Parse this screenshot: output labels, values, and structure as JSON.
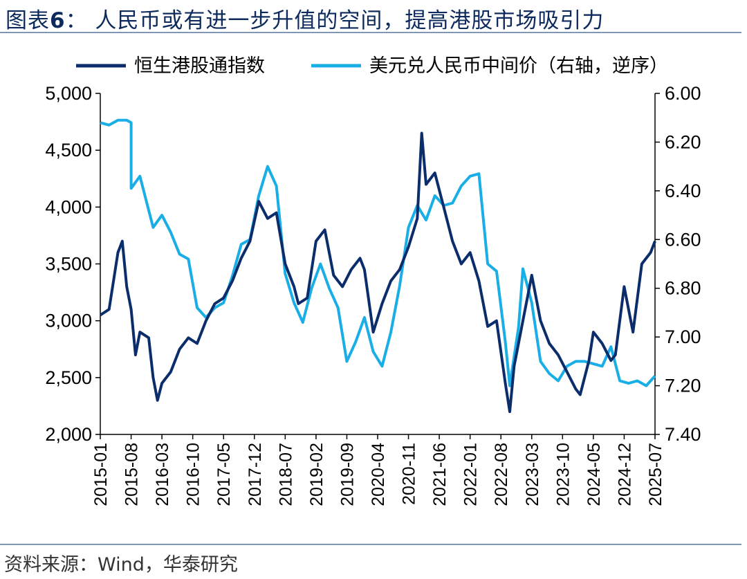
{
  "header": {
    "title_prefix": "图表",
    "title_number": "6",
    "title_text": "：  人民币或有进一步升值的空间，提高港股市场吸引力"
  },
  "footer": {
    "source": "资料来源：Wind，华泰研究"
  },
  "chart_data": {
    "type": "line",
    "x_ticks": [
      "2015-01",
      "2015-08",
      "2016-03",
      "2016-10",
      "2017-05",
      "2017-12",
      "2018-07",
      "2019-02",
      "2019-09",
      "2020-04",
      "2020-11",
      "2021-06",
      "2022-01",
      "2022-08",
      "2023-03",
      "2023-10",
      "2024-05",
      "2024-12",
      "2025-07"
    ],
    "y_left": {
      "ticks": [
        "5,000",
        "4,500",
        "4,000",
        "3,500",
        "3,000",
        "2,500",
        "2,000"
      ],
      "range": [
        2000,
        5000
      ]
    },
    "y_right": {
      "ticks": [
        "6.00",
        "6.20",
        "6.40",
        "6.60",
        "6.80",
        "7.00",
        "7.20",
        "7.40"
      ],
      "range": [
        6.0,
        7.4
      ],
      "reversed": true
    },
    "series": [
      {
        "name": "恒生港股通指数",
        "color": "#0b2d6b",
        "axis": "left",
        "x": [
          "2015-01",
          "2015-03",
          "2015-05",
          "2015-06",
          "2015-07",
          "2015-08",
          "2015-09",
          "2015-10",
          "2015-12",
          "2016-01",
          "2016-02",
          "2016-03",
          "2016-05",
          "2016-07",
          "2016-09",
          "2016-11",
          "2017-01",
          "2017-03",
          "2017-05",
          "2017-07",
          "2017-09",
          "2017-11",
          "2018-01",
          "2018-03",
          "2018-05",
          "2018-07",
          "2018-09",
          "2018-10",
          "2018-12",
          "2019-02",
          "2019-04",
          "2019-06",
          "2019-08",
          "2019-10",
          "2019-12",
          "2020-01",
          "2020-03",
          "2020-05",
          "2020-07",
          "2020-09",
          "2020-11",
          "2021-01",
          "2021-02",
          "2021-03",
          "2021-05",
          "2021-07",
          "2021-09",
          "2021-11",
          "2022-01",
          "2022-03",
          "2022-05",
          "2022-07",
          "2022-09",
          "2022-10",
          "2022-11",
          "2023-01",
          "2023-03",
          "2023-05",
          "2023-07",
          "2023-09",
          "2023-11",
          "2024-01",
          "2024-02",
          "2024-04",
          "2024-05",
          "2024-07",
          "2024-09",
          "2024-10",
          "2024-12",
          "2025-02",
          "2025-04",
          "2025-06",
          "2025-07"
        ],
        "values": [
          3050,
          3100,
          3600,
          3700,
          3300,
          3100,
          2700,
          2900,
          2850,
          2500,
          2300,
          2450,
          2550,
          2750,
          2850,
          2800,
          3000,
          3150,
          3200,
          3350,
          3550,
          3700,
          4050,
          3900,
          3950,
          3500,
          3300,
          3150,
          3200,
          3700,
          3800,
          3400,
          3300,
          3450,
          3550,
          3450,
          2900,
          3150,
          3350,
          3450,
          3650,
          3900,
          4650,
          4200,
          4300,
          4000,
          3700,
          3500,
          3600,
          3350,
          2950,
          3000,
          2450,
          2200,
          2600,
          3000,
          3400,
          3000,
          2800,
          2700,
          2550,
          2400,
          2350,
          2650,
          2900,
          2800,
          2650,
          2700,
          3300,
          2900,
          3500,
          3600,
          3700
        ]
      },
      {
        "name": "美元兑人民币中间价（右轴，逆序）",
        "color": "#1aaee6",
        "axis": "right",
        "x": [
          "2015-01",
          "2015-03",
          "2015-05",
          "2015-07",
          "2015-08",
          "2015-08",
          "2015-10",
          "2015-12",
          "2016-01",
          "2016-03",
          "2016-05",
          "2016-07",
          "2016-09",
          "2016-11",
          "2017-01",
          "2017-03",
          "2017-05",
          "2017-07",
          "2017-09",
          "2017-11",
          "2018-01",
          "2018-03",
          "2018-05",
          "2018-07",
          "2018-09",
          "2018-11",
          "2019-01",
          "2019-03",
          "2019-05",
          "2019-07",
          "2019-09",
          "2019-11",
          "2020-01",
          "2020-03",
          "2020-05",
          "2020-07",
          "2020-09",
          "2020-11",
          "2021-01",
          "2021-03",
          "2021-05",
          "2021-07",
          "2021-09",
          "2021-11",
          "2022-01",
          "2022-03",
          "2022-05",
          "2022-07",
          "2022-09",
          "2022-10",
          "2022-12",
          "2023-01",
          "2023-03",
          "2023-05",
          "2023-07",
          "2023-09",
          "2023-11",
          "2024-01",
          "2024-03",
          "2024-05",
          "2024-07",
          "2024-09",
          "2024-11",
          "2025-01",
          "2025-03",
          "2025-05",
          "2025-07"
        ],
        "values": [
          6.12,
          6.13,
          6.11,
          6.11,
          6.12,
          6.39,
          6.34,
          6.48,
          6.55,
          6.5,
          6.57,
          6.66,
          6.68,
          6.88,
          6.92,
          6.88,
          6.86,
          6.75,
          6.62,
          6.6,
          6.42,
          6.3,
          6.38,
          6.74,
          6.86,
          6.94,
          6.8,
          6.7,
          6.8,
          6.88,
          7.1,
          7.02,
          6.92,
          7.06,
          7.12,
          6.98,
          6.79,
          6.55,
          6.46,
          6.52,
          6.42,
          6.46,
          6.45,
          6.38,
          6.34,
          6.33,
          6.7,
          6.73,
          7.02,
          7.2,
          6.96,
          6.72,
          6.86,
          7.1,
          7.15,
          7.18,
          7.12,
          7.1,
          7.1,
          7.11,
          7.12,
          7.04,
          7.18,
          7.19,
          7.18,
          7.2,
          7.16
        ]
      }
    ]
  }
}
